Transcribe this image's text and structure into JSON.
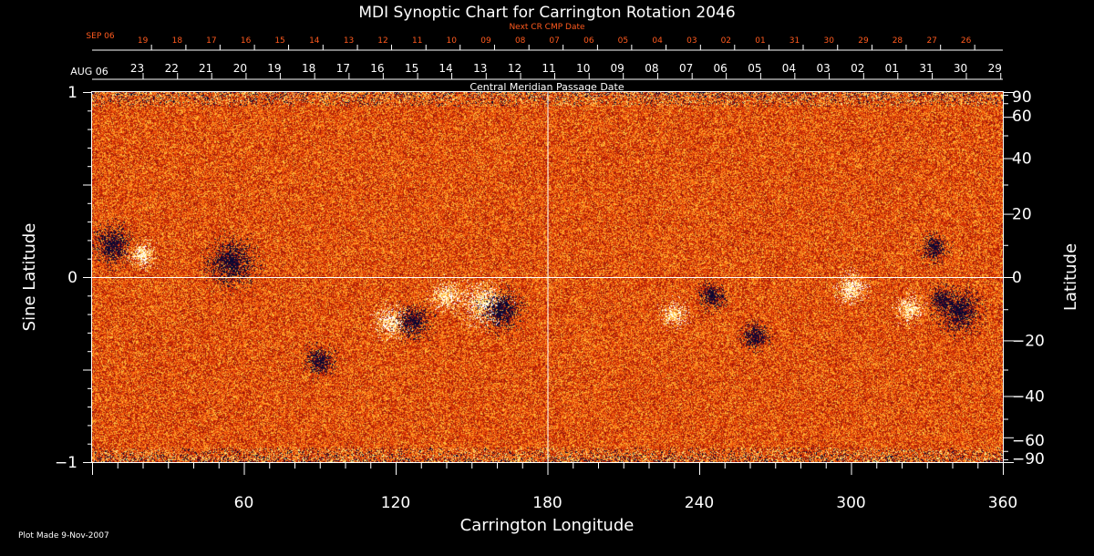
{
  "chart_data": {
    "type": "heatmap",
    "title": "MDI Synoptic Chart for Carrington Rotation 2046",
    "xlabel": "Carrington Longitude",
    "ylabel_left": "Sine Latitude",
    "ylabel_right": "Latitude",
    "xlim": [
      0,
      360
    ],
    "ylim": [
      -1,
      1
    ],
    "x_ticks": [
      "60",
      "120",
      "180",
      "240",
      "300",
      "360"
    ],
    "x_tick_values": [
      60,
      120,
      180,
      240,
      300,
      360
    ],
    "y_left_ticks": [
      "1",
      "0",
      "−1"
    ],
    "y_left_tick_values": [
      1,
      0,
      -1
    ],
    "y_right_ticks": [
      "90",
      "60",
      "40",
      "20",
      "0",
      "−20",
      "−40",
      "−60",
      "−90"
    ],
    "y_right_tick_values": [
      90,
      60,
      40,
      20,
      0,
      -20,
      -40,
      -60,
      -90
    ],
    "grid_lines": {
      "longitude": 180,
      "sine_latitude": 0
    },
    "cmp_axis": {
      "label": "Central Meridian Passage Date",
      "start_label": "AUG 06",
      "days": [
        "23",
        "22",
        "21",
        "20",
        "19",
        "18",
        "17",
        "16",
        "15",
        "14",
        "13",
        "12",
        "11",
        "10",
        "09",
        "08",
        "07",
        "06",
        "05",
        "04",
        "03",
        "02",
        "01",
        "31",
        "30",
        "29"
      ],
      "day_positions_deg": [
        20.0,
        33.6,
        47.1,
        60.7,
        74.2,
        87.8,
        101.4,
        114.9,
        128.5,
        142.0,
        155.6,
        169.2,
        182.7,
        196.3,
        209.8,
        223.4,
        237.0,
        250.5,
        264.1,
        277.6,
        291.2,
        304.8,
        318.3,
        331.9,
        345.4,
        359.0
      ]
    },
    "next_cr_axis": {
      "label": "Next CR CMP Date",
      "start_label": "SEP 06",
      "days": [
        "19",
        "18",
        "17",
        "16",
        "15",
        "14",
        "13",
        "12",
        "11",
        "10",
        "09",
        "08",
        "07",
        "06",
        "05",
        "04",
        "03",
        "02",
        "01",
        "31",
        "30",
        "29",
        "28",
        "27",
        "26"
      ],
      "day_positions_deg": [
        23.3,
        36.9,
        50.4,
        64.0,
        77.5,
        91.1,
        104.7,
        118.2,
        131.8,
        145.3,
        158.9,
        172.5,
        186.0,
        199.6,
        213.1,
        226.7,
        240.3,
        253.8,
        267.4,
        280.9,
        294.5,
        308.1,
        321.6,
        335.2,
        348.7
      ]
    },
    "footer": "Plot Made  9-Nov-2007",
    "active_regions": [
      {
        "lon": 118,
        "sinlat": -0.24,
        "polarity": "positive"
      },
      {
        "lon": 127,
        "sinlat": -0.24,
        "polarity": "negative"
      },
      {
        "lon": 140,
        "sinlat": -0.1,
        "polarity": "positive"
      },
      {
        "lon": 155,
        "sinlat": -0.14,
        "polarity": "positive"
      },
      {
        "lon": 162,
        "sinlat": -0.18,
        "polarity": "negative"
      },
      {
        "lon": 8,
        "sinlat": 0.18,
        "polarity": "negative"
      },
      {
        "lon": 20,
        "sinlat": 0.12,
        "polarity": "positive"
      },
      {
        "lon": 55,
        "sinlat": 0.08,
        "polarity": "negative"
      },
      {
        "lon": 245,
        "sinlat": -0.1,
        "polarity": "negative"
      },
      {
        "lon": 230,
        "sinlat": -0.2,
        "polarity": "positive"
      },
      {
        "lon": 262,
        "sinlat": -0.32,
        "polarity": "negative"
      },
      {
        "lon": 323,
        "sinlat": -0.17,
        "polarity": "positive"
      },
      {
        "lon": 336,
        "sinlat": -0.12,
        "polarity": "negative"
      },
      {
        "lon": 343,
        "sinlat": -0.18,
        "polarity": "negative"
      },
      {
        "lon": 333,
        "sinlat": 0.16,
        "polarity": "negative"
      },
      {
        "lon": 90,
        "sinlat": -0.45,
        "polarity": "negative"
      },
      {
        "lon": 300,
        "sinlat": -0.06,
        "polarity": "positive"
      }
    ]
  }
}
